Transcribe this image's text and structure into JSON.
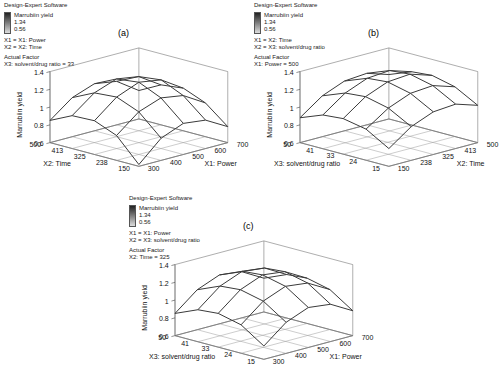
{
  "chart_data": [
    {
      "type": "surface",
      "title": "(a)",
      "software": "Design-Expert Software",
      "color": "#3a3a3a",
      "color_bar": {
        "title": "Marrubiin yield",
        "range": [
          0.56,
          1.34
        ]
      },
      "factors": [
        "X1 = X1: Power",
        "X2 = X2: Time"
      ],
      "actual_factor": {
        "title": "Actual Factor",
        "label": "X3: solvent/drug ratio = 33"
      },
      "x_label": "X2: Time",
      "x": [
        150,
        238,
        325,
        413,
        500
      ],
      "xlim": [
        150,
        500
      ],
      "xticks": [
        150,
        238,
        325,
        413,
        500
      ],
      "y_label": "X1: Power",
      "y": [
        300,
        400,
        500,
        600,
        700
      ],
      "ylim": [
        300,
        700
      ],
      "yticks": [
        300,
        400,
        500,
        600,
        700
      ],
      "z_label": "Marrubiin yield",
      "zlim": [
        0.6,
        1.4
      ],
      "zticks": [
        0.6,
        0.8,
        1,
        1.2,
        1.4
      ],
      "values": [
        [
          0.62,
          0.85,
          0.95,
          0.92,
          0.78
        ],
        [
          0.88,
          1.08,
          1.17,
          1.13,
          0.98
        ],
        [
          0.98,
          1.18,
          1.28,
          1.24,
          1.08
        ],
        [
          0.97,
          1.16,
          1.25,
          1.21,
          1.05
        ],
        [
          0.85,
          1.04,
          1.13,
          1.09,
          0.92
        ]
      ]
    },
    {
      "type": "surface",
      "title": "(b)",
      "software": "Design-Expert Software",
      "color": "#3a3a3a",
      "color_bar": {
        "title": "Marrubiin yield",
        "range": [
          0.56,
          1.34
        ]
      },
      "factors": [
        "X1 = X2: Time",
        "X2 = X3: solvent/drug ratio"
      ],
      "actual_factor": {
        "title": "Actual Factor",
        "label": "X1: Power = 500"
      },
      "x_label": "X3: solvent/drug ratio",
      "x": [
        15,
        24,
        33,
        41,
        50
      ],
      "xlim": [
        15,
        50
      ],
      "xticks": [
        15,
        24,
        33,
        41,
        50
      ],
      "y_label": "X2: Time",
      "y": [
        150,
        238,
        325,
        413,
        500
      ],
      "ylim": [
        150,
        500
      ],
      "yticks": [
        150,
        238,
        325,
        413,
        500
      ],
      "z_label": "Marrubiin yield",
      "zlim": [
        0.6,
        1.4
      ],
      "zticks": [
        0.6,
        0.8,
        1,
        1.2,
        1.4
      ],
      "values": [
        [
          0.8,
          0.98,
          1.08,
          1.1,
          1.02
        ],
        [
          0.95,
          1.12,
          1.22,
          1.24,
          1.16
        ],
        [
          1.0,
          1.18,
          1.28,
          1.3,
          1.22
        ],
        [
          0.98,
          1.16,
          1.26,
          1.28,
          1.2
        ],
        [
          0.88,
          1.06,
          1.16,
          1.18,
          1.1
        ]
      ]
    },
    {
      "type": "surface",
      "title": "(c)",
      "software": "Design-Expert Software",
      "color": "#3a3a3a",
      "color_bar": {
        "title": "Marrubiin yield",
        "range": [
          0.56,
          1.34
        ]
      },
      "factors": [
        "X1 = X1: Power",
        "X2 = X3: solvent/drug ratio"
      ],
      "actual_factor": {
        "title": "Actual Factor",
        "label": "X2: Time = 325"
      },
      "x_label": "X3: solvent/drug ratio",
      "x": [
        15,
        24,
        33,
        41,
        50
      ],
      "xlim": [
        15,
        50
      ],
      "xticks": [
        15,
        24,
        33,
        41,
        50
      ],
      "y_label": "X1: Power",
      "y": [
        300,
        400,
        500,
        600,
        700
      ],
      "ylim": [
        300,
        700
      ],
      "yticks": [
        300,
        400,
        500,
        600,
        700
      ],
      "z_label": "Marrubiin yield",
      "zlim": [
        0.6,
        1.4
      ],
      "zticks": [
        0.6,
        0.8,
        1,
        1.2,
        1.4
      ],
      "values": [
        [
          0.75,
          0.95,
          1.05,
          1.02,
          0.88
        ],
        [
          0.92,
          1.12,
          1.22,
          1.19,
          1.05
        ],
        [
          0.98,
          1.18,
          1.28,
          1.25,
          1.11
        ],
        [
          0.96,
          1.16,
          1.26,
          1.23,
          1.09
        ],
        [
          0.85,
          1.05,
          1.15,
          1.12,
          0.98
        ]
      ]
    }
  ]
}
